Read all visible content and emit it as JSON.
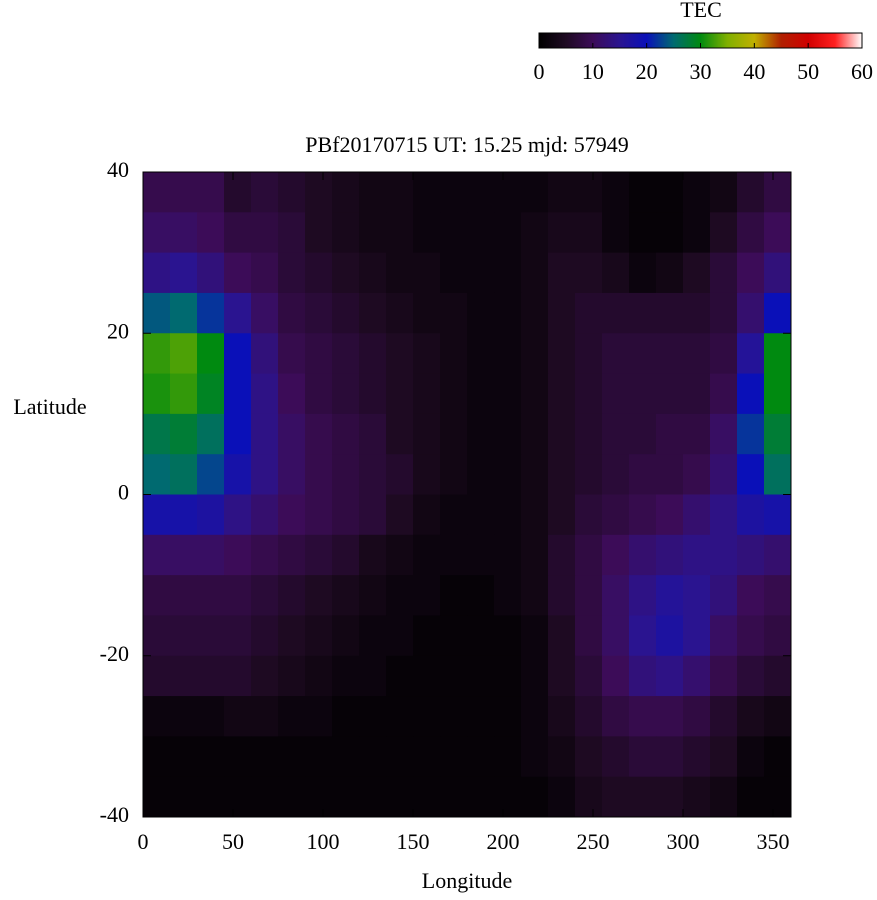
{
  "chart_data": {
    "type": "heatmap",
    "title": "PBf20170715  UT: 15.25  mjd: 57949",
    "x_label": "Longitude",
    "y_label": "Latitude",
    "x": [
      7.5,
      22.5,
      37.5,
      52.5,
      67.5,
      82.5,
      97.5,
      112.5,
      127.5,
      142.5,
      157.5,
      172.5,
      187.5,
      202.5,
      217.5,
      232.5,
      247.5,
      262.5,
      277.5,
      292.5,
      307.5,
      322.5,
      337.5,
      352.5
    ],
    "y": [
      37.5,
      32.5,
      27.5,
      22.5,
      17.5,
      12.5,
      7.5,
      2.5,
      -2.5,
      -7.5,
      -12.5,
      -17.5,
      -22.5,
      -27.5,
      -32.5,
      -37.5
    ],
    "z": [
      [
        9,
        9,
        9,
        6,
        7,
        6,
        5,
        4,
        3,
        3,
        2,
        2,
        2,
        2,
        2,
        3,
        3,
        2,
        1,
        1,
        2,
        3,
        6,
        8
      ],
      [
        11,
        11,
        10,
        8,
        8,
        7,
        5,
        4,
        3,
        3,
        2,
        2,
        2,
        2,
        3,
        4,
        4,
        2,
        1,
        1,
        2,
        5,
        8,
        10
      ],
      [
        14,
        15,
        13,
        10,
        9,
        7,
        6,
        5,
        4,
        3,
        3,
        2,
        2,
        2,
        3,
        5,
        5,
        4,
        2,
        3,
        5,
        7,
        10,
        13
      ],
      [
        24,
        25,
        22,
        15,
        11,
        8,
        7,
        6,
        5,
        4,
        3,
        3,
        2,
        2,
        3,
        5,
        6,
        6,
        6,
        6,
        6,
        7,
        12,
        20
      ],
      [
        32,
        33,
        30,
        20,
        13,
        9,
        8,
        7,
        6,
        5,
        4,
        3,
        2,
        2,
        3,
        5,
        6,
        7,
        7,
        7,
        7,
        8,
        16,
        30
      ],
      [
        31,
        32,
        29,
        20,
        14,
        10,
        8,
        7,
        6,
        5,
        4,
        3,
        2,
        2,
        3,
        5,
        6,
        7,
        7,
        7,
        7,
        9,
        20,
        30
      ],
      [
        27,
        28,
        26,
        20,
        14,
        11,
        9,
        8,
        7,
        5,
        4,
        3,
        2,
        2,
        3,
        5,
        6,
        7,
        7,
        8,
        8,
        11,
        22,
        28
      ],
      [
        25,
        26,
        23,
        18,
        14,
        11,
        9,
        8,
        7,
        6,
        4,
        3,
        2,
        2,
        3,
        5,
        6,
        7,
        8,
        8,
        9,
        12,
        20,
        26
      ],
      [
        18,
        18,
        17,
        14,
        12,
        10,
        9,
        8,
        7,
        5,
        3,
        2,
        2,
        2,
        3,
        5,
        7,
        8,
        9,
        10,
        12,
        14,
        17,
        18
      ],
      [
        11,
        11,
        11,
        10,
        9,
        8,
        7,
        6,
        4,
        3,
        2,
        2,
        2,
        2,
        3,
        6,
        8,
        10,
        12,
        13,
        14,
        14,
        13,
        12
      ],
      [
        8,
        8,
        8,
        8,
        7,
        6,
        5,
        4,
        3,
        2,
        2,
        1,
        1,
        2,
        3,
        6,
        8,
        11,
        14,
        16,
        15,
        13,
        10,
        9
      ],
      [
        7,
        7,
        7,
        7,
        6,
        5,
        4,
        3,
        2,
        2,
        1,
        1,
        1,
        1,
        2,
        5,
        8,
        11,
        15,
        17,
        15,
        11,
        9,
        8
      ],
      [
        6,
        6,
        6,
        6,
        5,
        4,
        3,
        2,
        2,
        1,
        1,
        1,
        1,
        1,
        2,
        5,
        7,
        10,
        13,
        14,
        12,
        9,
        7,
        6
      ],
      [
        2,
        2,
        2,
        3,
        3,
        2,
        2,
        1,
        1,
        1,
        1,
        1,
        1,
        1,
        2,
        4,
        6,
        8,
        9,
        9,
        8,
        6,
        4,
        3
      ],
      [
        1,
        1,
        1,
        1,
        1,
        1,
        1,
        1,
        1,
        1,
        1,
        1,
        1,
        1,
        2,
        3,
        5,
        6,
        7,
        7,
        6,
        5,
        2,
        1
      ],
      [
        1,
        1,
        1,
        1,
        1,
        1,
        1,
        1,
        1,
        1,
        1,
        1,
        1,
        1,
        1,
        2,
        4,
        5,
        5,
        5,
        4,
        3,
        1,
        1
      ]
    ],
    "xlim": [
      0,
      360
    ],
    "ylim": [
      -40,
      40
    ],
    "xticks": [
      0,
      50,
      100,
      150,
      200,
      250,
      300,
      350
    ],
    "yticks": [
      -40,
      -20,
      0,
      20,
      40
    ],
    "colorbar": {
      "label": "TEC",
      "lim": [
        0,
        60
      ],
      "ticks": [
        0,
        10,
        20,
        30,
        40,
        50,
        60
      ],
      "colors": [
        "#000000",
        "#1e0a22",
        "#3c0c58",
        "#2a1490",
        "#0a10b8",
        "#006a70",
        "#008a10",
        "#80b000",
        "#c0b000",
        "#b02000",
        "#d00000",
        "#ff2020",
        "#ffffff"
      ]
    }
  }
}
